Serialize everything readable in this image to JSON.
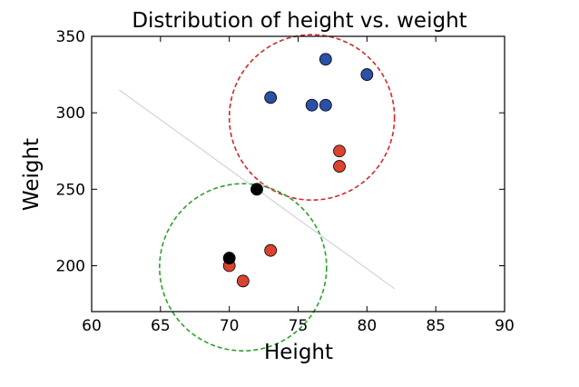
{
  "chart_data": {
    "type": "scatter",
    "title": "Distribution of height vs. weight",
    "xlabel": "Height",
    "ylabel": "Weight",
    "xlim": [
      60,
      90
    ],
    "ylim": [
      170,
      350
    ],
    "xticks": [
      60,
      65,
      70,
      75,
      80,
      85,
      90
    ],
    "yticks": [
      200,
      250,
      300,
      350
    ],
    "grid": false,
    "series": [
      {
        "color": "#2c4fa8",
        "points": [
          {
            "x": 73,
            "y": 310
          },
          {
            "x": 76,
            "y": 305
          },
          {
            "x": 77,
            "y": 305
          },
          {
            "x": 77,
            "y": 335
          },
          {
            "x": 80,
            "y": 325
          }
        ]
      },
      {
        "color": "#d9432f",
        "points": [
          {
            "x": 78,
            "y": 275
          },
          {
            "x": 78,
            "y": 265
          },
          {
            "x": 73,
            "y": 210
          },
          {
            "x": 70,
            "y": 200
          },
          {
            "x": 71,
            "y": 190
          }
        ]
      },
      {
        "color": "#000000",
        "points": [
          {
            "x": 72,
            "y": 250
          },
          {
            "x": 70,
            "y": 205
          }
        ]
      }
    ],
    "annotations": [
      {
        "kind": "dashed-circle",
        "color": "#d62728",
        "center": {
          "x": 76,
          "y": 297
        }
      },
      {
        "kind": "dashed-circle",
        "color": "#2ca02c",
        "center": {
          "x": 71,
          "y": 199
        }
      },
      {
        "kind": "line",
        "color": "#cccccc",
        "from": {
          "x": 62,
          "y": 315
        },
        "to": {
          "x": 82,
          "y": 185
        }
      }
    ]
  }
}
